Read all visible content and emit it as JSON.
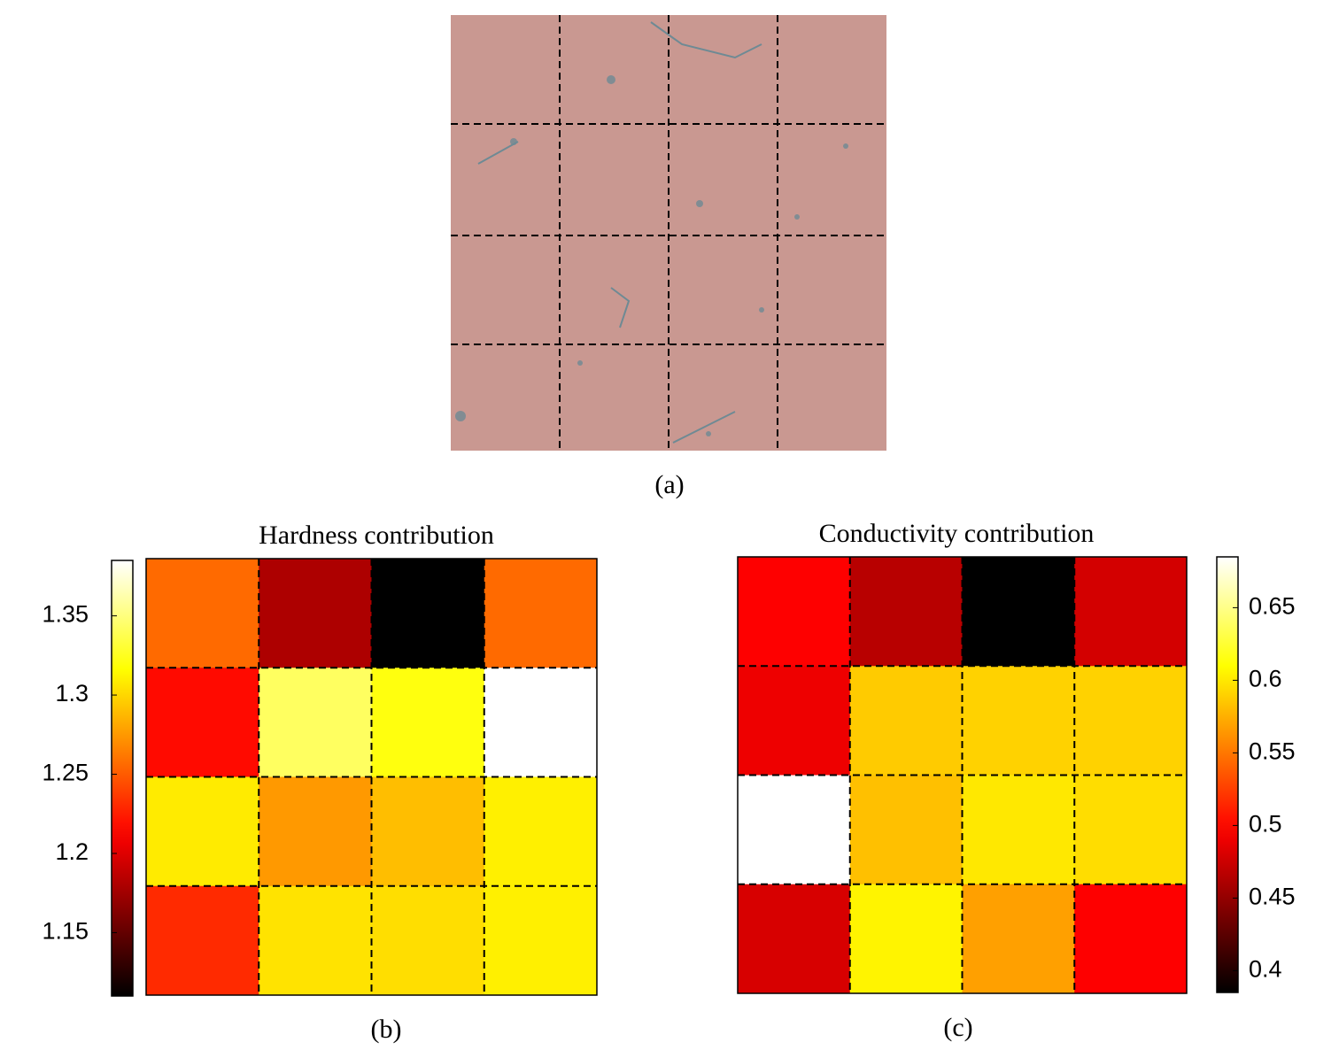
{
  "figure": {
    "caption": "(a)"
  },
  "chart_data": [
    {
      "type": "heatmap",
      "title": "Hardness contribution",
      "caption": "(b)",
      "colormap": "hot",
      "colorbar": "left",
      "clim": [
        1.11,
        1.385
      ],
      "cticks": [
        1.15,
        1.2,
        1.25,
        1.3,
        1.35
      ],
      "values": [
        [
          1.256,
          1.18,
          1.11,
          1.256
        ],
        [
          1.217,
          1.342,
          1.32,
          1.385
        ],
        [
          1.308,
          1.275,
          1.29,
          1.31
        ],
        [
          1.23,
          1.305,
          1.303,
          1.31
        ]
      ]
    },
    {
      "type": "heatmap",
      "title": "Conductivity contribution",
      "caption": "(c)",
      "colormap": "hot",
      "colorbar": "right",
      "clim": [
        0.385,
        0.685
      ],
      "cticks": [
        0.4,
        0.45,
        0.5,
        0.55,
        0.6,
        0.65
      ],
      "values": [
        [
          0.497,
          0.466,
          0.385,
          0.478
        ],
        [
          0.49,
          0.587,
          0.59,
          0.59
        ],
        [
          0.685,
          0.582,
          0.6,
          0.595
        ],
        [
          0.48,
          0.605,
          0.568,
          0.497
        ]
      ]
    }
  ]
}
